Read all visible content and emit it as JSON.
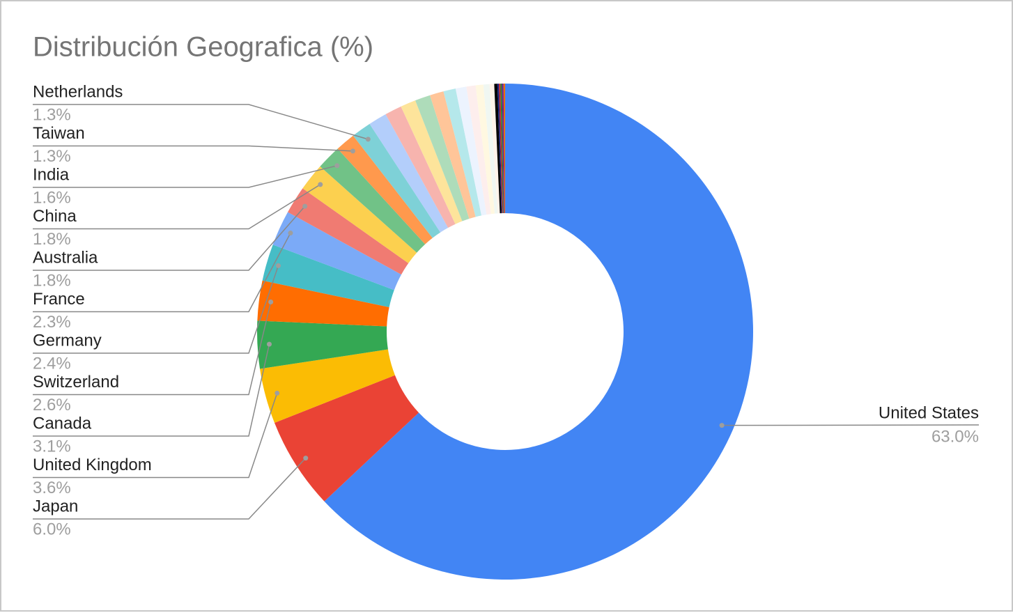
{
  "chart_data": {
    "type": "donut",
    "title": "Distribución Geografica (%)",
    "categories": [
      "United States",
      "Japan",
      "United Kingdom",
      "Canada",
      "Switzerland",
      "Germany",
      "France",
      "Australia",
      "China",
      "India",
      "Taiwan",
      "Netherlands",
      null,
      null,
      null,
      null,
      null,
      null,
      null,
      null,
      null,
      null,
      null,
      null,
      null,
      null,
      null,
      null,
      null
    ],
    "values": [
      63.0,
      6.0,
      3.6,
      3.1,
      2.6,
      2.4,
      2.3,
      1.8,
      1.8,
      1.6,
      1.3,
      1.3,
      1.2,
      1.1,
      1.0,
      1.0,
      0.9,
      0.8,
      0.7,
      0.6,
      0.5,
      0.4,
      0.3,
      0.2,
      0.1,
      0.1,
      0.1,
      0.1,
      0.1
    ],
    "value_labels": [
      "63.0%",
      "6.0%",
      "3.6%",
      "3.1%",
      "2.6%",
      "2.4%",
      "2.3%",
      "1.8%",
      "1.8%",
      "1.6%",
      "1.3%",
      "1.3%",
      null,
      null,
      null,
      null,
      null,
      null,
      null,
      null,
      null,
      null,
      null,
      null,
      null,
      null,
      null,
      null,
      null
    ],
    "colors": [
      "#4285f4",
      "#ea4335",
      "#fbbc04",
      "#34a853",
      "#ff6d01",
      "#46bdc6",
      "#7baaf7",
      "#f07b72",
      "#fcd04f",
      "#71c287",
      "#ff994d",
      "#7ed1d7",
      "#b3cefb",
      "#f7b4ae",
      "#fde49b",
      "#aedcba",
      "#ffc599",
      "#b5e8eb",
      "#ecf3fe",
      "#fdeeed",
      "#fff8e1",
      "#f0f7f2",
      "#fff3ea",
      "#000000",
      "#1a237e",
      "#c62828",
      "#2e7d32",
      "#6a1b9a",
      "#ef6c00"
    ]
  }
}
